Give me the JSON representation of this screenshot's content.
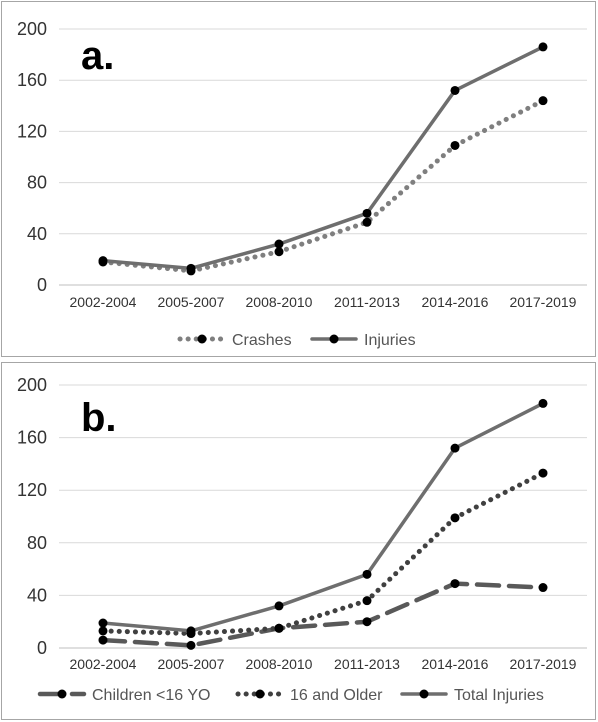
{
  "chart_data": [
    {
      "type": "line",
      "panel_label": "a.",
      "categories": [
        "2002-2004",
        "2005-2007",
        "2008-2010",
        "2011-2013",
        "2014-2016",
        "2017-2019"
      ],
      "ylim": [
        0,
        200
      ],
      "yticks": [
        0,
        40,
        80,
        120,
        160,
        200
      ],
      "grid": true,
      "legend_position": "bottom",
      "series": [
        {
          "name": "Crashes",
          "values": [
            18,
            11,
            26,
            49,
            109,
            144
          ],
          "style": "dotted",
          "color": "#7f7f7f"
        },
        {
          "name": "Injuries",
          "values": [
            19,
            13,
            32,
            56,
            152,
            186
          ],
          "style": "solid",
          "color": "#6e6e6e"
        }
      ]
    },
    {
      "type": "line",
      "panel_label": "b.",
      "categories": [
        "2002-2004",
        "2005-2007",
        "2008-2010",
        "2011-2013",
        "2014-2016",
        "2017-2019"
      ],
      "ylim": [
        0,
        200
      ],
      "yticks": [
        0,
        40,
        80,
        120,
        160,
        200
      ],
      "grid": true,
      "legend_position": "bottom",
      "series": [
        {
          "name": "Children <16 YO",
          "values": [
            6,
            2,
            15,
            20,
            49,
            46
          ],
          "style": "dashed",
          "color": "#595959"
        },
        {
          "name": "16 and Older",
          "values": [
            13,
            11,
            15,
            36,
            99,
            133
          ],
          "style": "dotted",
          "color": "#404040"
        },
        {
          "name": "Total Injuries",
          "values": [
            19,
            13,
            32,
            56,
            152,
            186
          ],
          "style": "solid",
          "color": "#6e6e6e"
        }
      ]
    }
  ]
}
